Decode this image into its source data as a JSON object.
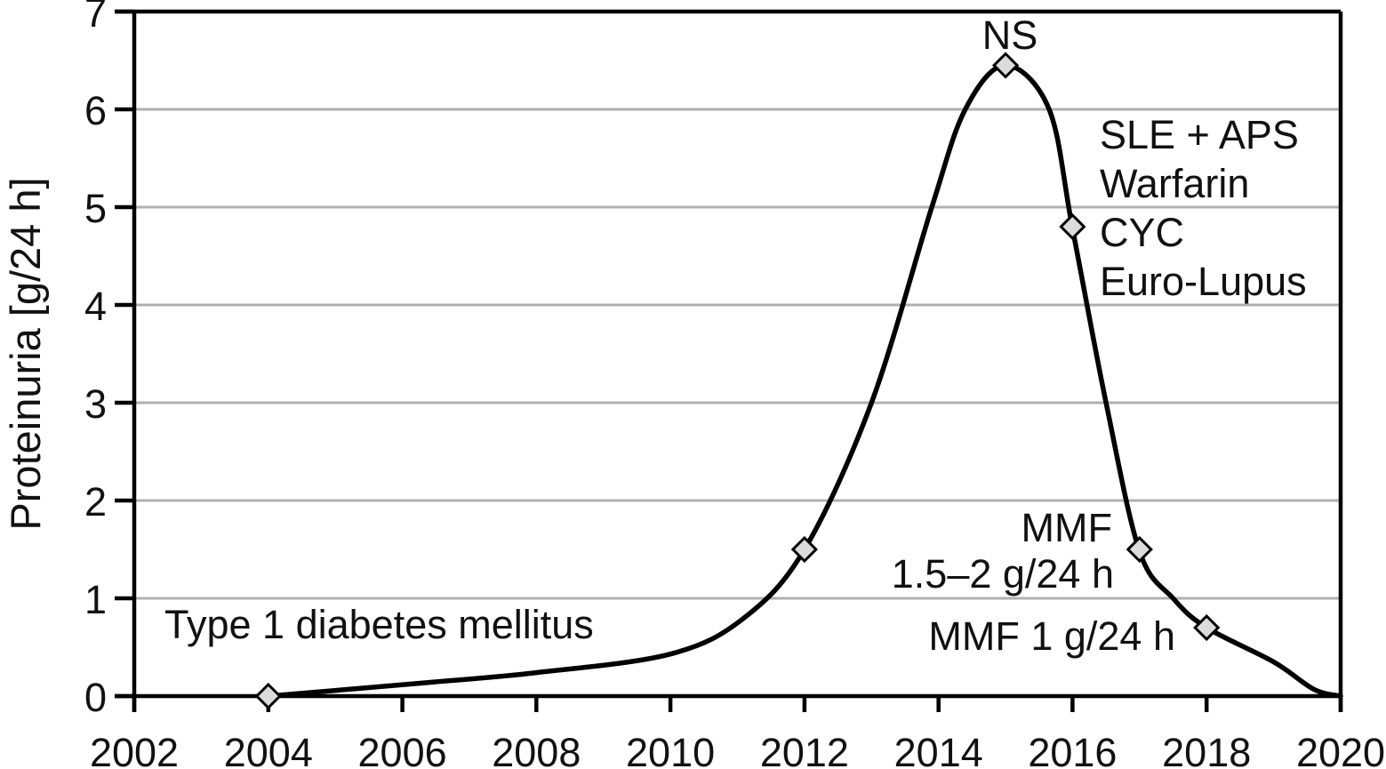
{
  "chart_data": {
    "type": "line",
    "title": "",
    "xlabel": "",
    "ylabel": "Proteinuria [g/24 h]",
    "xlim": [
      2002,
      2020
    ],
    "ylim": [
      0,
      7
    ],
    "x_ticks": [
      2002,
      2004,
      2006,
      2008,
      2010,
      2012,
      2014,
      2016,
      2018,
      2020
    ],
    "y_ticks": [
      0,
      1,
      2,
      3,
      4,
      5,
      6,
      7
    ],
    "grid": "horizontal gridlines at each integer y, plot framed on top and right",
    "legend": "none",
    "series": [
      {
        "name": "Proteinuria",
        "marker": "diamond",
        "markers": [
          {
            "year": 2004,
            "value": 0,
            "label": "Type 1 diabetes mellitus"
          },
          {
            "year": 2012,
            "value": 1.5,
            "label": ""
          },
          {
            "year": 2015,
            "value": 6.45,
            "label": "NS"
          },
          {
            "year": 2016,
            "value": 4.8,
            "label": "SLE + APS / Warfarin / CYC / Euro-Lupus"
          },
          {
            "year": 2017,
            "value": 1.5,
            "label": "MMF 1.5–2 g/24 h"
          },
          {
            "year": 2018,
            "value": 0.7,
            "label": "MMF 1 g/24 h"
          }
        ],
        "curve_points": [
          [
            2004,
            0
          ],
          [
            2006.4,
            0.14
          ],
          [
            2008,
            0.24
          ],
          [
            2010,
            0.43
          ],
          [
            2011.1,
            0.8
          ],
          [
            2012,
            1.5
          ],
          [
            2013,
            3.0
          ],
          [
            2013.9,
            5.0
          ],
          [
            2014.4,
            6.0
          ],
          [
            2015,
            6.45
          ],
          [
            2015.65,
            6.0
          ],
          [
            2016,
            4.78
          ],
          [
            2016.5,
            3.0
          ],
          [
            2017,
            1.48
          ],
          [
            2017.5,
            1.0
          ],
          [
            2018,
            0.7
          ],
          [
            2019,
            0.35
          ],
          [
            2019.6,
            0.07
          ],
          [
            2020,
            0
          ]
        ]
      }
    ],
    "annotations": {
      "diagnosis": "Type 1 diabetes mellitus",
      "peak": "NS",
      "treatment_lines": [
        "SLE + APS",
        "Warfarin",
        "CYC",
        "Euro-Lupus"
      ],
      "mmf_high_lines": [
        "MMF",
        "1.5–2 g/24 h"
      ],
      "mmf_low": "MMF 1 g/24 h"
    },
    "colors": {
      "curve": "#000000",
      "axis": "#000000",
      "grid": "#b0b0b0",
      "marker_fill": "#dcdcdc",
      "marker_stroke": "#000000",
      "text": "#111111",
      "background": "#ffffff"
    }
  }
}
